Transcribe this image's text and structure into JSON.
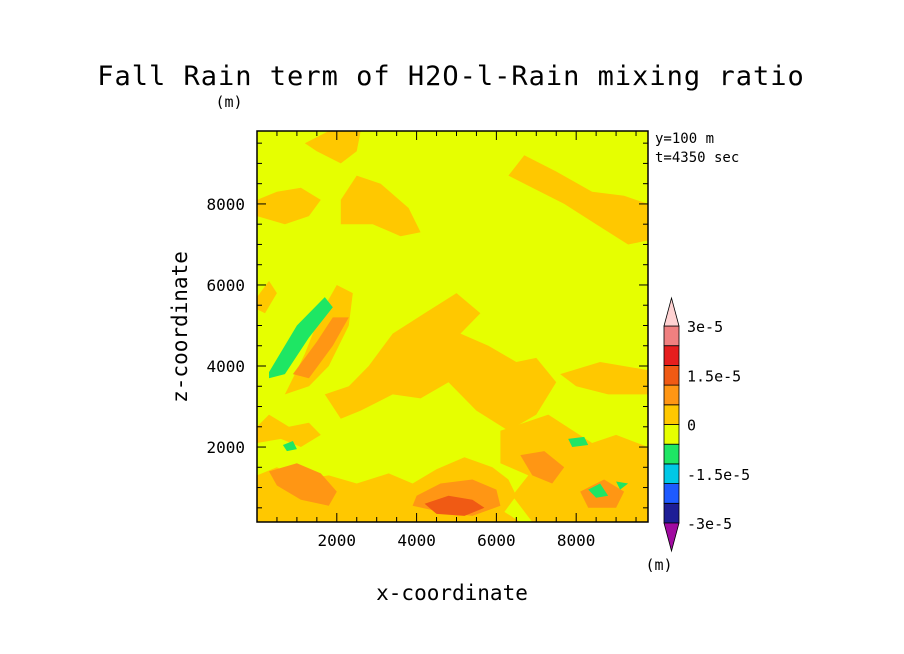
{
  "chart_data": {
    "type": "heatmap",
    "title": "Fall Rain term of H2O-l-Rain mixing ratio",
    "subtitle": "(m)",
    "xlabel": "x-coordinate",
    "ylabel": "z-coordinate",
    "annotations": [
      "y=100 m",
      "t=4350 sec"
    ],
    "xlim": [
      0,
      9800
    ],
    "ylim": [
      150,
      9800
    ],
    "x_ticks": [
      2000,
      4000,
      6000,
      8000
    ],
    "y_ticks": [
      2000,
      4000,
      6000,
      8000
    ],
    "background_value": 0,
    "colorbar": {
      "unit_label": "(m)",
      "labels": [
        "3e-5",
        "1.5e-5",
        "0",
        "-1.5e-5",
        "-3e-5"
      ],
      "label_values": [
        3e-05,
        1.5e-05,
        0,
        -1.5e-05,
        -3e-05
      ],
      "levels": [
        {
          "color": "#a00aa0"
        },
        {
          "color": "#1e1e96"
        },
        {
          "color": "#1e5aff"
        },
        {
          "color": "#00c8e6"
        },
        {
          "color": "#1ee664"
        },
        {
          "color": "#e6ff00"
        },
        {
          "color": "#ffc800"
        },
        {
          "color": "#ff9614"
        },
        {
          "color": "#f05a14"
        },
        {
          "color": "#e61e1e"
        },
        {
          "color": "#f08080"
        },
        {
          "color": "#ffd2d2"
        }
      ]
    },
    "regions": [
      {
        "level": 6,
        "points": [
          [
            0,
            1300
          ],
          [
            500,
            1500
          ],
          [
            1100,
            1200
          ],
          [
            1800,
            1300
          ],
          [
            2500,
            1100
          ],
          [
            3300,
            1350
          ],
          [
            3900,
            1100
          ],
          [
            4500,
            1450
          ],
          [
            5200,
            1750
          ],
          [
            5900,
            1500
          ],
          [
            6300,
            1200
          ],
          [
            6500,
            800
          ],
          [
            6200,
            400
          ],
          [
            6600,
            150
          ],
          [
            0,
            150
          ]
        ]
      },
      {
        "level": 6,
        "points": [
          [
            0,
            2500
          ],
          [
            300,
            2800
          ],
          [
            800,
            2500
          ],
          [
            1300,
            2600
          ],
          [
            1600,
            2300
          ],
          [
            1100,
            2000
          ],
          [
            600,
            2200
          ],
          [
            0,
            2100
          ]
        ]
      },
      {
        "level": 6,
        "points": [
          [
            700,
            3300
          ],
          [
            1200,
            4300
          ],
          [
            1600,
            5300
          ],
          [
            2000,
            6000
          ],
          [
            2400,
            5800
          ],
          [
            2300,
            5000
          ],
          [
            1800,
            4000
          ],
          [
            1300,
            3500
          ]
        ]
      },
      {
        "level": 6,
        "points": [
          [
            1700,
            3300
          ],
          [
            2300,
            3500
          ],
          [
            2800,
            4000
          ],
          [
            3400,
            4800
          ],
          [
            4200,
            5300
          ],
          [
            5000,
            5800
          ],
          [
            5600,
            5300
          ],
          [
            5100,
            4800
          ],
          [
            5800,
            4500
          ],
          [
            6500,
            4100
          ],
          [
            7000,
            4200
          ],
          [
            7500,
            3600
          ],
          [
            7000,
            2800
          ],
          [
            6300,
            2400
          ],
          [
            5500,
            2900
          ],
          [
            4800,
            3600
          ],
          [
            4100,
            3200
          ],
          [
            3400,
            3300
          ],
          [
            2600,
            2900
          ],
          [
            2100,
            2700
          ]
        ]
      },
      {
        "level": 6,
        "points": [
          [
            6100,
            2400
          ],
          [
            7300,
            2800
          ],
          [
            8400,
            2100
          ],
          [
            9000,
            2300
          ],
          [
            9800,
            2000
          ],
          [
            9800,
            150
          ],
          [
            6900,
            150
          ],
          [
            6400,
            800
          ],
          [
            6800,
            1300
          ],
          [
            6100,
            1600
          ]
        ]
      },
      {
        "level": 6,
        "points": [
          [
            1800,
            9800
          ],
          [
            2600,
            9800
          ],
          [
            2500,
            9300
          ],
          [
            2100,
            9000
          ],
          [
            1500,
            9300
          ],
          [
            1200,
            9500
          ]
        ]
      },
      {
        "level": 6,
        "points": [
          [
            0,
            8100
          ],
          [
            500,
            8300
          ],
          [
            1100,
            8400
          ],
          [
            1600,
            8100
          ],
          [
            1300,
            7700
          ],
          [
            700,
            7500
          ],
          [
            0,
            7700
          ]
        ]
      },
      {
        "level": 6,
        "points": [
          [
            2100,
            8100
          ],
          [
            2500,
            8700
          ],
          [
            3100,
            8500
          ],
          [
            3800,
            7900
          ],
          [
            4100,
            7300
          ],
          [
            3600,
            7200
          ],
          [
            2900,
            7500
          ],
          [
            2100,
            7500
          ]
        ]
      },
      {
        "level": 6,
        "points": [
          [
            6300,
            8700
          ],
          [
            6700,
            9200
          ],
          [
            7500,
            8800
          ],
          [
            8400,
            8300
          ],
          [
            9200,
            8200
          ],
          [
            9800,
            8000
          ],
          [
            9800,
            7100
          ],
          [
            9300,
            7000
          ],
          [
            8500,
            7500
          ],
          [
            7700,
            8000
          ],
          [
            6900,
            8400
          ]
        ]
      },
      {
        "level": 6,
        "points": [
          [
            7600,
            3800
          ],
          [
            8600,
            4100
          ],
          [
            9800,
            3900
          ],
          [
            9800,
            3300
          ],
          [
            8800,
            3300
          ],
          [
            8000,
            3500
          ]
        ]
      },
      {
        "level": 6,
        "points": [
          [
            0,
            5700
          ],
          [
            300,
            6100
          ],
          [
            500,
            5800
          ],
          [
            200,
            5300
          ],
          [
            0,
            5400
          ]
        ]
      },
      {
        "level": 7,
        "points": [
          [
            300,
            1400
          ],
          [
            1000,
            1600
          ],
          [
            1600,
            1350
          ],
          [
            2000,
            900
          ],
          [
            1800,
            550
          ],
          [
            1100,
            700
          ],
          [
            500,
            1050
          ]
        ]
      },
      {
        "level": 7,
        "points": [
          [
            4000,
            800
          ],
          [
            4600,
            1100
          ],
          [
            5400,
            1200
          ],
          [
            6000,
            950
          ],
          [
            6100,
            550
          ],
          [
            5400,
            300
          ],
          [
            4600,
            400
          ],
          [
            3900,
            550
          ]
        ]
      },
      {
        "level": 7,
        "points": [
          [
            6600,
            1800
          ],
          [
            7200,
            1900
          ],
          [
            7700,
            1500
          ],
          [
            7400,
            1100
          ],
          [
            6900,
            1300
          ]
        ]
      },
      {
        "level": 7,
        "points": [
          [
            8100,
            900
          ],
          [
            8700,
            1200
          ],
          [
            9200,
            900
          ],
          [
            9000,
            500
          ],
          [
            8300,
            500
          ]
        ]
      },
      {
        "level": 7,
        "points": [
          [
            900,
            3800
          ],
          [
            1500,
            4600
          ],
          [
            1900,
            5200
          ],
          [
            2300,
            5200
          ],
          [
            1900,
            4500
          ],
          [
            1300,
            3700
          ]
        ]
      },
      {
        "level": 8,
        "points": [
          [
            4200,
            600
          ],
          [
            4800,
            800
          ],
          [
            5400,
            700
          ],
          [
            5700,
            500
          ],
          [
            5200,
            300
          ],
          [
            4500,
            350
          ]
        ]
      },
      {
        "level": 4,
        "points": [
          [
            300,
            3850
          ],
          [
            1000,
            5000
          ],
          [
            1700,
            5700
          ],
          [
            1900,
            5450
          ],
          [
            1300,
            4700
          ],
          [
            700,
            3800
          ],
          [
            300,
            3700
          ]
        ]
      },
      {
        "level": 4,
        "points": [
          [
            650,
            2050
          ],
          [
            900,
            2150
          ],
          [
            1000,
            1950
          ],
          [
            750,
            1900
          ]
        ]
      },
      {
        "level": 4,
        "points": [
          [
            7800,
            2200
          ],
          [
            8200,
            2250
          ],
          [
            8300,
            2050
          ],
          [
            7900,
            2000
          ]
        ]
      },
      {
        "level": 4,
        "points": [
          [
            8300,
            950
          ],
          [
            8600,
            1100
          ],
          [
            8800,
            800
          ],
          [
            8500,
            750
          ]
        ]
      },
      {
        "level": 4,
        "points": [
          [
            9000,
            1150
          ],
          [
            9300,
            1100
          ],
          [
            9100,
            950
          ]
        ]
      }
    ]
  }
}
